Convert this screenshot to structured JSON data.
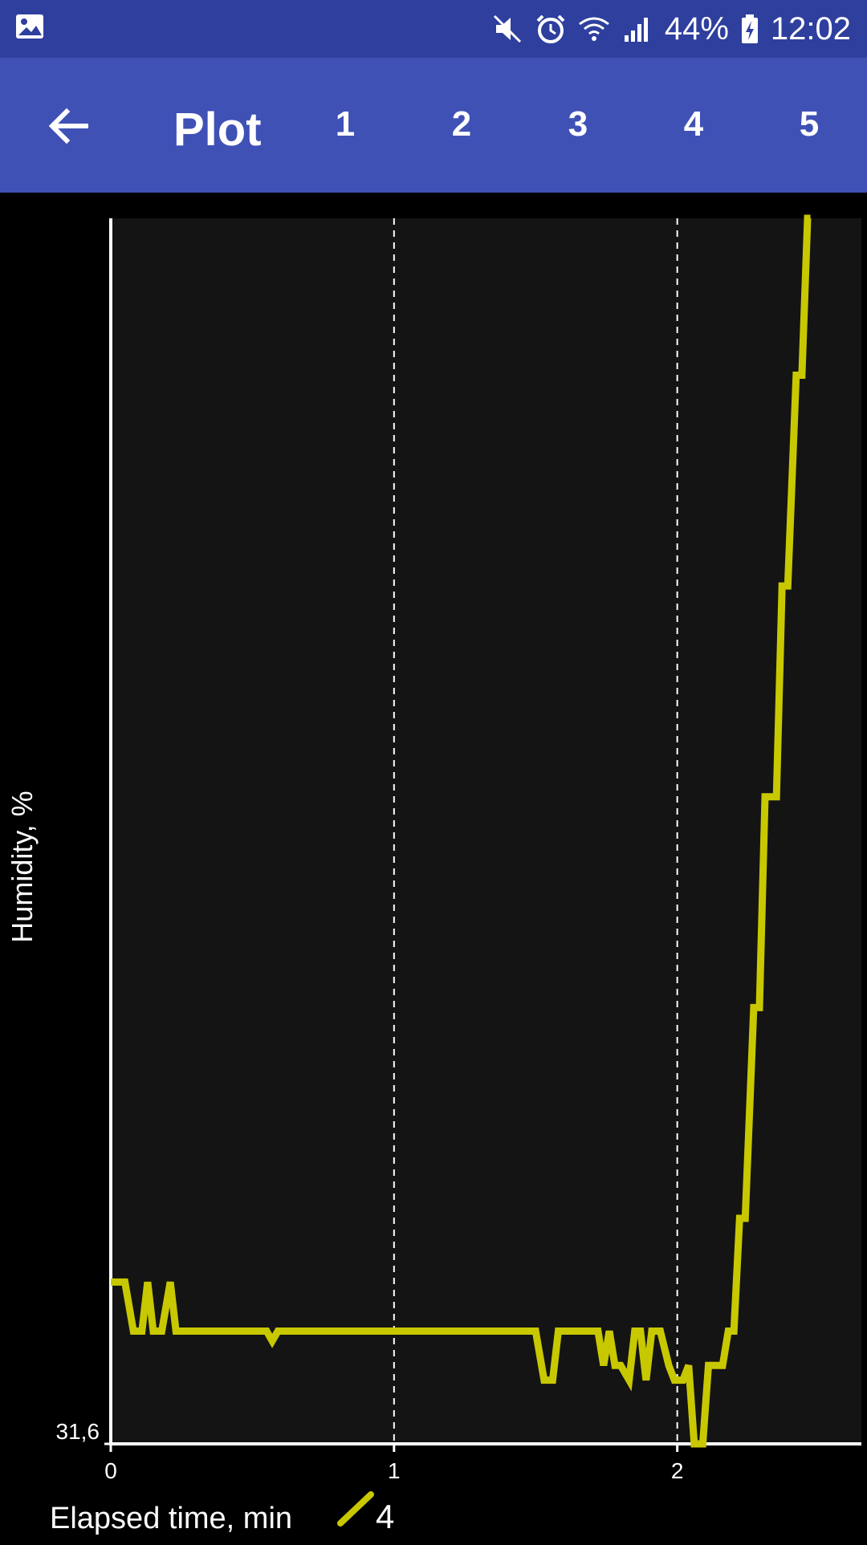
{
  "status_bar": {
    "battery": "44%",
    "time": "12:02",
    "icons": [
      "gallery-icon",
      "mute-icon",
      "alarm-icon",
      "wifi-icon",
      "signal-icon",
      "battery-charging-icon"
    ]
  },
  "app_bar": {
    "back_icon": "arrow-left-icon",
    "title": "Plot",
    "tabs": [
      "1",
      "2",
      "3",
      "4",
      "5"
    ]
  },
  "colors": {
    "status_bar": "#2f3f9e",
    "app_bar": "#3f51b5",
    "plot_background": "#141414",
    "series": "#c8c800",
    "axis": "#ffffff"
  },
  "chart_data": {
    "type": "line",
    "xlabel": "Elapsed time, min",
    "ylabel": "Humidity, %",
    "xlim": [
      0,
      2.65
    ],
    "ylim": [
      31.6,
      34.1
    ],
    "x_ticks": [
      0,
      1,
      2
    ],
    "x_tick_labels": [
      "0",
      "1",
      "2"
    ],
    "y_tick_labels": [
      {
        "value": 31.6,
        "label": "31,6"
      }
    ],
    "grid": "vertical dashed lines at x = 1 and x = 2",
    "legend": {
      "placement": "bottom",
      "entries": [
        "4"
      ]
    },
    "series": [
      {
        "name": "4",
        "color": "#c8c800",
        "points": [
          [
            0.0,
            31.93
          ],
          [
            0.05,
            31.93
          ],
          [
            0.08,
            31.83
          ],
          [
            0.11,
            31.83
          ],
          [
            0.13,
            31.93
          ],
          [
            0.15,
            31.83
          ],
          [
            0.18,
            31.83
          ],
          [
            0.21,
            31.93
          ],
          [
            0.23,
            31.83
          ],
          [
            0.55,
            31.83
          ],
          [
            0.57,
            31.81
          ],
          [
            0.59,
            31.83
          ],
          [
            1.5,
            31.83
          ],
          [
            1.53,
            31.73
          ],
          [
            1.56,
            31.73
          ],
          [
            1.58,
            31.83
          ],
          [
            1.72,
            31.83
          ],
          [
            1.74,
            31.76
          ],
          [
            1.76,
            31.83
          ],
          [
            1.78,
            31.76
          ],
          [
            1.8,
            31.76
          ],
          [
            1.83,
            31.73
          ],
          [
            1.85,
            31.83
          ],
          [
            1.87,
            31.83
          ],
          [
            1.89,
            31.73
          ],
          [
            1.91,
            31.83
          ],
          [
            1.94,
            31.83
          ],
          [
            1.97,
            31.76
          ],
          [
            1.99,
            31.73
          ],
          [
            2.02,
            31.73
          ],
          [
            2.04,
            31.76
          ],
          [
            2.06,
            31.6
          ],
          [
            2.09,
            31.6
          ],
          [
            2.11,
            31.76
          ],
          [
            2.16,
            31.76
          ],
          [
            2.18,
            31.83
          ],
          [
            2.2,
            31.83
          ],
          [
            2.22,
            32.06
          ],
          [
            2.24,
            32.06
          ],
          [
            2.27,
            32.49
          ],
          [
            2.29,
            32.49
          ],
          [
            2.31,
            32.92
          ],
          [
            2.35,
            32.92
          ],
          [
            2.37,
            33.35
          ],
          [
            2.39,
            33.35
          ],
          [
            2.42,
            33.78
          ],
          [
            2.44,
            33.78
          ],
          [
            2.46,
            34.1
          ],
          [
            2.47,
            34.1
          ]
        ]
      }
    ]
  }
}
